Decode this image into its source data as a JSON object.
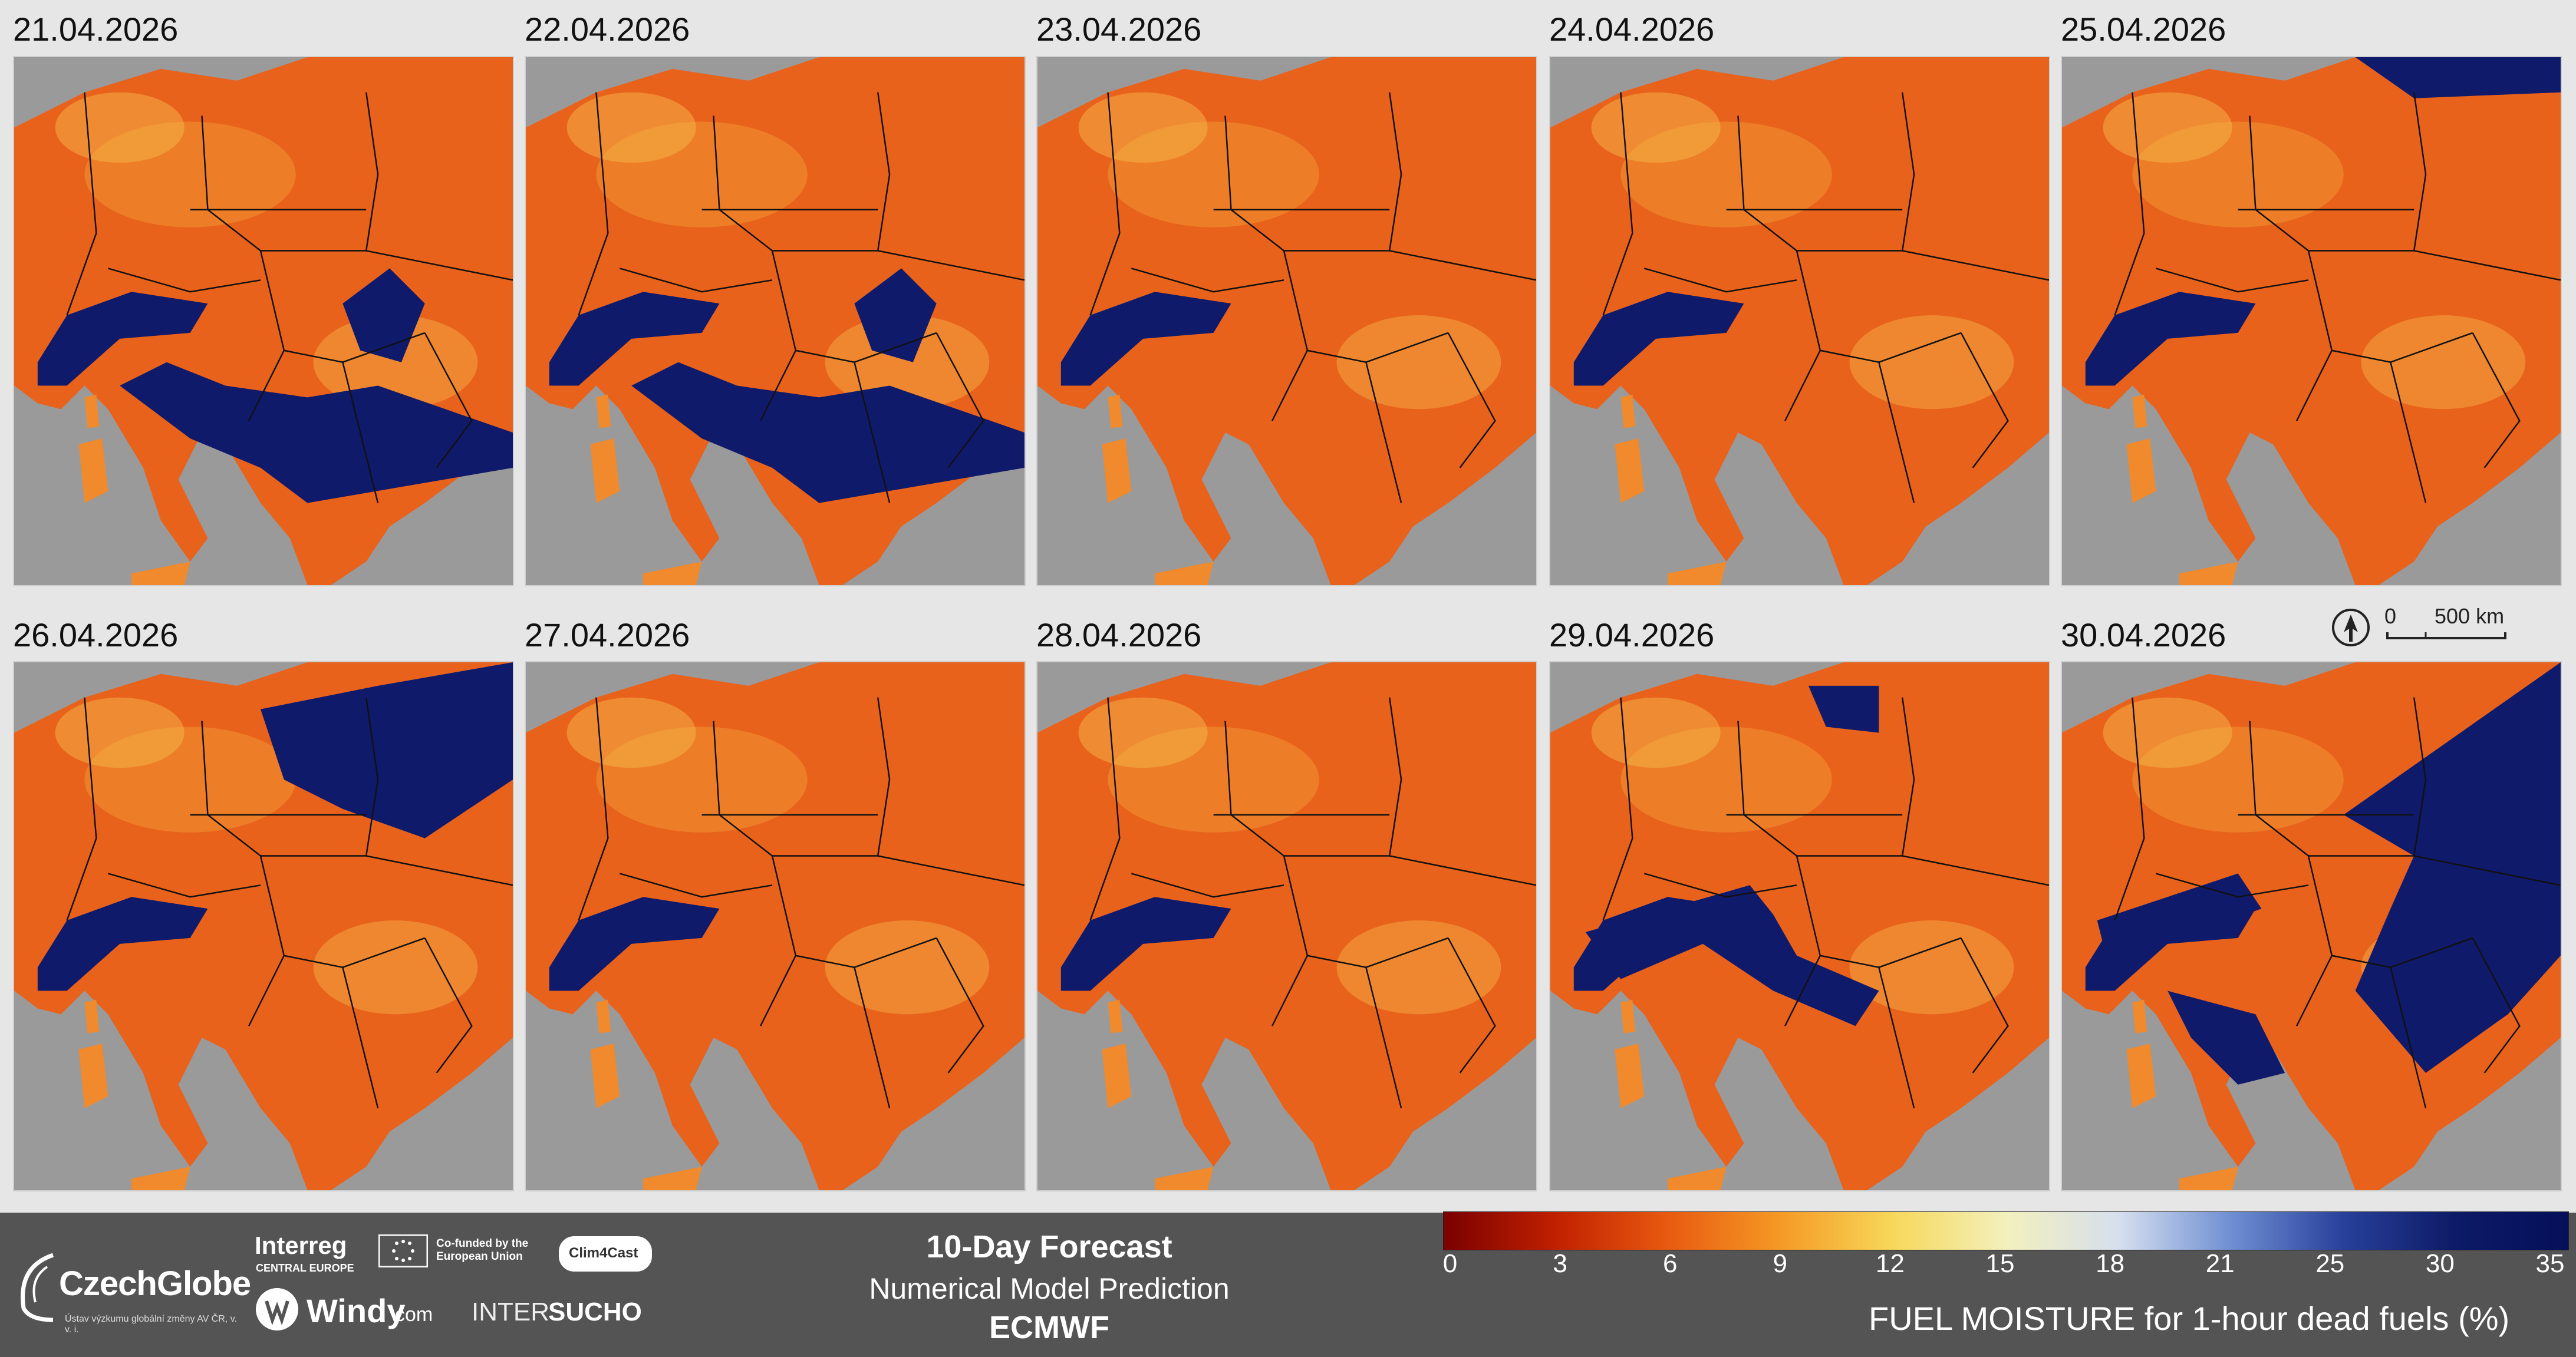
{
  "maps": [
    {
      "date": "21.04.2026",
      "wet": "heavy-south"
    },
    {
      "date": "22.04.2026",
      "wet": "heavy-south"
    },
    {
      "date": "23.04.2026",
      "wet": "alps"
    },
    {
      "date": "24.04.2026",
      "wet": "alps"
    },
    {
      "date": "25.04.2026",
      "wet": "alps-north"
    },
    {
      "date": "26.04.2026",
      "wet": "north"
    },
    {
      "date": "27.04.2026",
      "wet": "alps"
    },
    {
      "date": "28.04.2026",
      "wet": "alps"
    },
    {
      "date": "29.04.2026",
      "wet": "balkans"
    },
    {
      "date": "30.04.2026",
      "wet": "east"
    }
  ],
  "scale_bar": {
    "zero": "0",
    "distance": "500 km"
  },
  "forecast": {
    "title": "10-Day Forecast",
    "subtitle": "Numerical Model Prediction",
    "model": "ECMWF"
  },
  "logos": {
    "czechglobe": "CzechGlobe",
    "czechglobe_sub": "Ústav výzkumu globální změny AV ČR, v. v. i.",
    "interreg": "Interreg",
    "interreg_sub": "CENTRAL EUROPE",
    "cofunded": "Co-funded by the European Union",
    "clim4cast": "Clim4Cast",
    "windy": "Windy",
    "windy_suffix": "com",
    "intersucho_a": "INTER",
    "intersucho_b": "SUCHO"
  },
  "colorbar": {
    "title": "FUEL MOISTURE for 1-hour dead fuels (%)",
    "ticks": [
      "0",
      "3",
      "6",
      "9",
      "12",
      "15",
      "18",
      "21",
      "25",
      "30",
      "35"
    ],
    "colors": [
      "#7a0000",
      "#c02000",
      "#e85a10",
      "#f59a25",
      "#f7d85a",
      "#f3f0bd",
      "#d6dfee",
      "#6f8fd3",
      "#28409a",
      "#0d1a66",
      "#050f5a"
    ]
  },
  "colors": {
    "land_dry": "#e8621c",
    "land_mid": "#f08a2c",
    "land_light": "#f6b54a",
    "wet": "#0f1a6b",
    "sea": "#9a9a9a",
    "footer": "#545454"
  }
}
